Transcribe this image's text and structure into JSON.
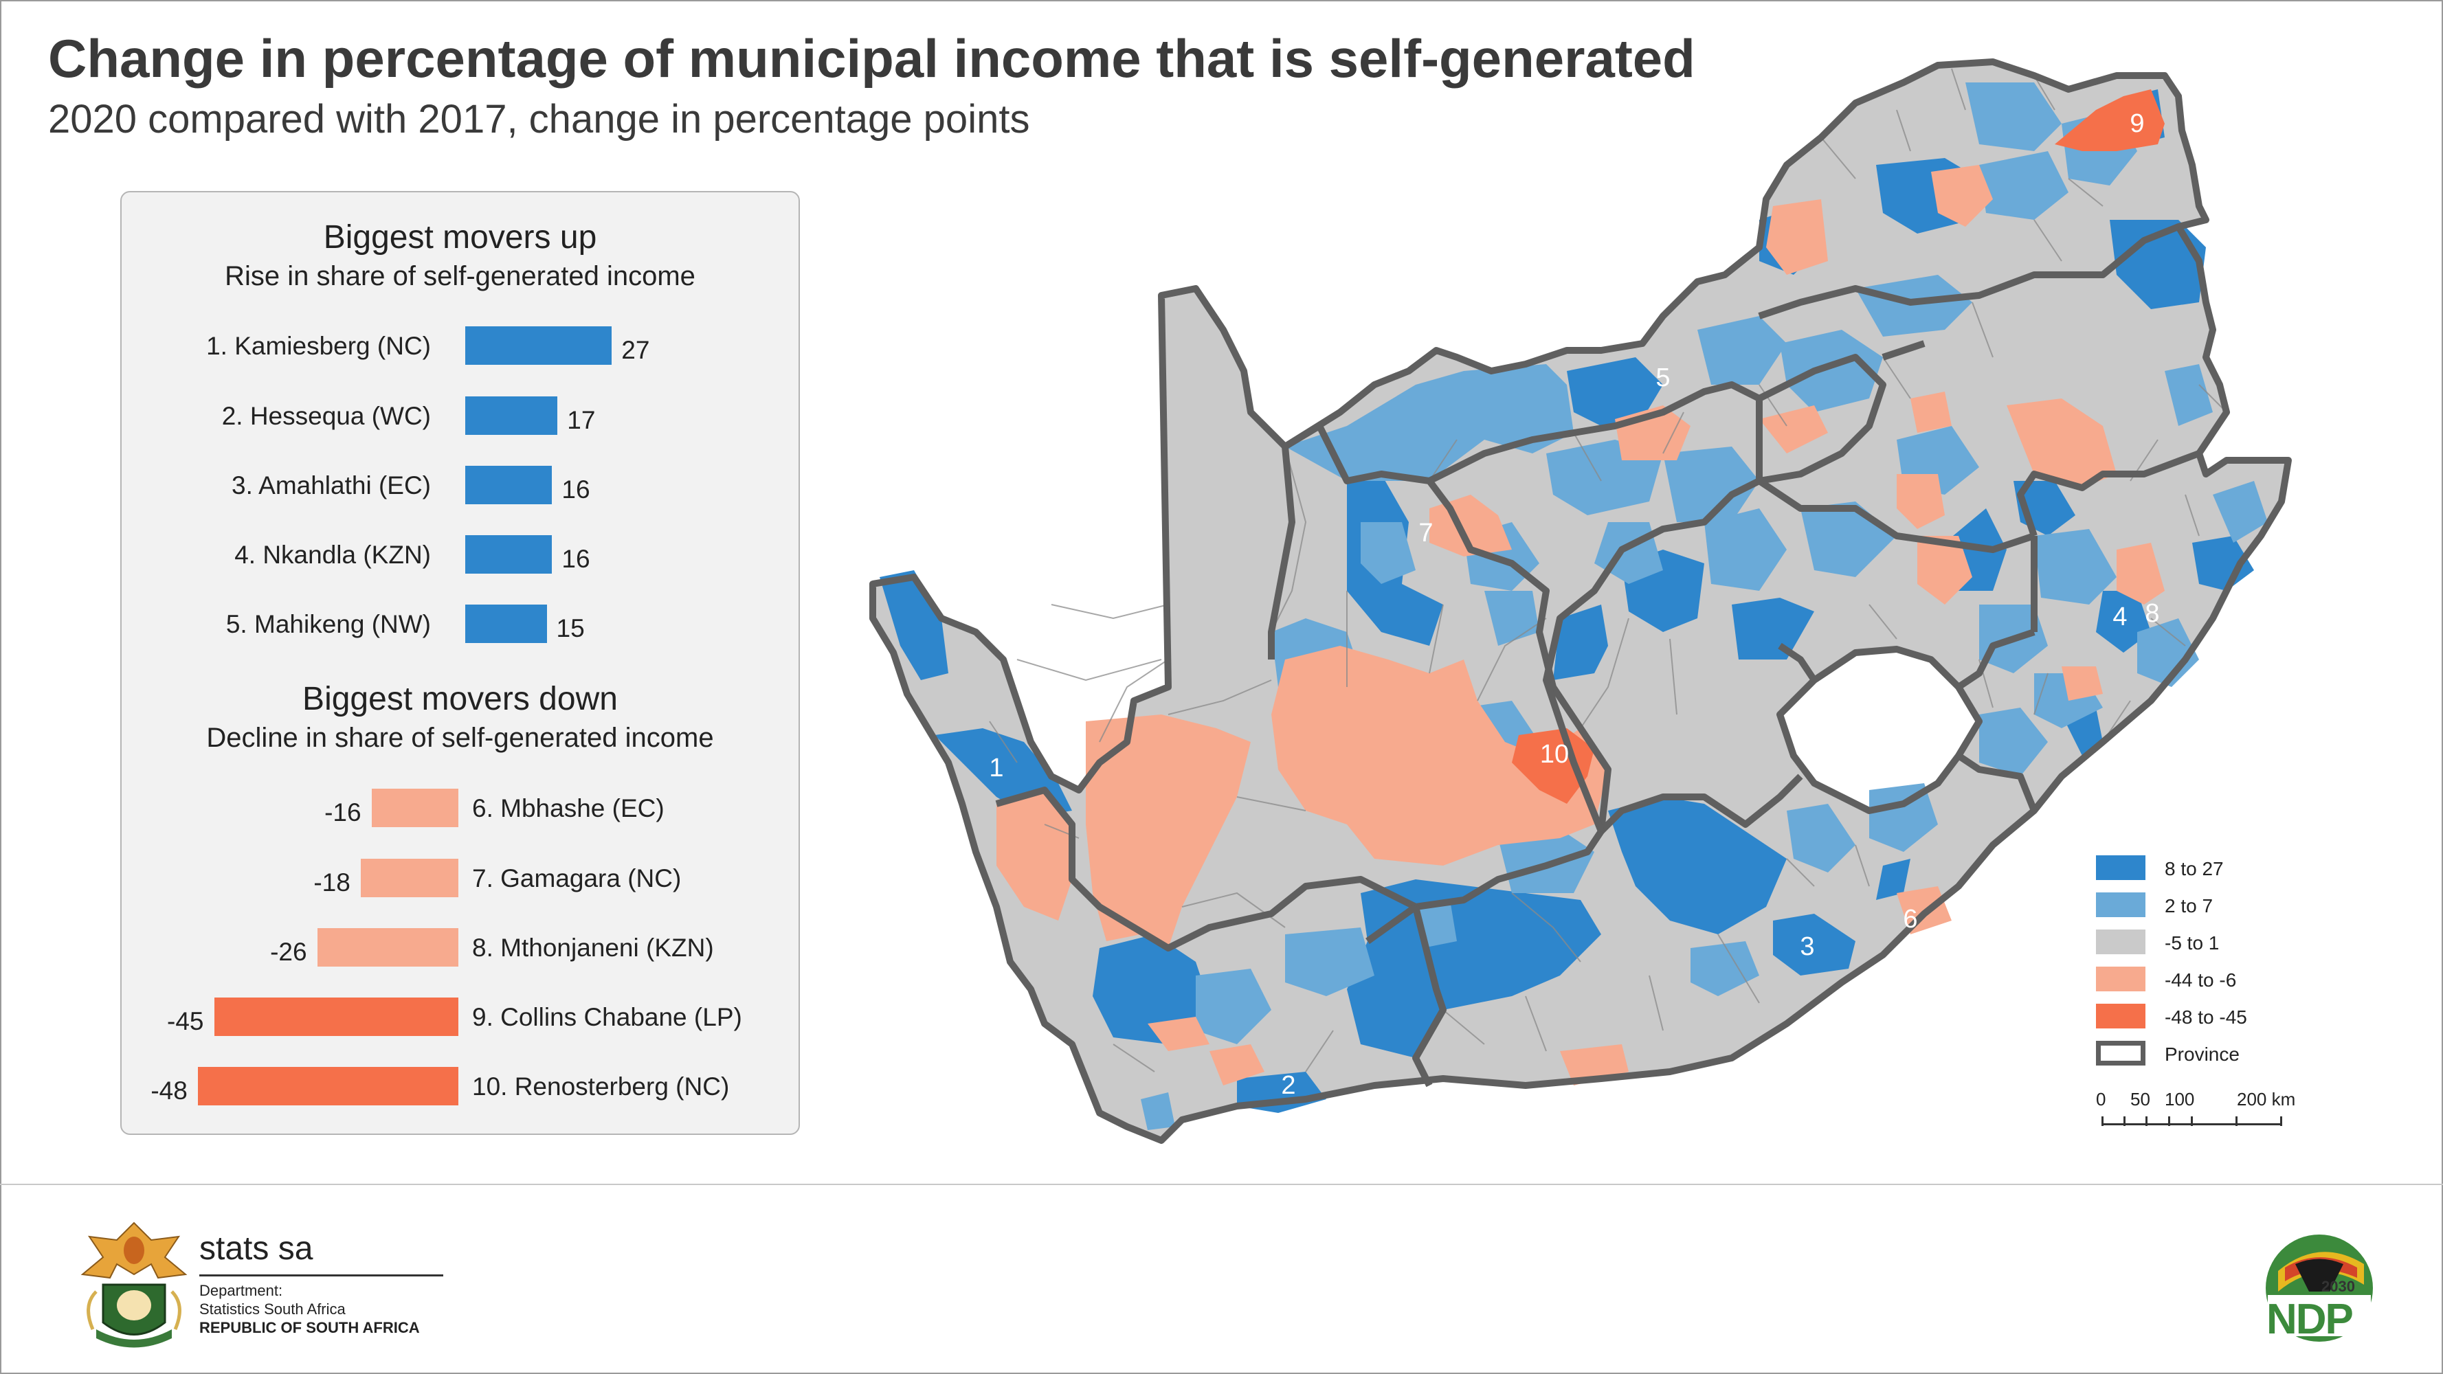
{
  "title": "Change in percentage of municipal income that is self-generated",
  "subtitle": "2020 compared with 2017, change in percentage points",
  "colors": {
    "cat_8_27": "#2e86cc",
    "cat_2_7": "#6aaad8",
    "cat_m5_1": "#cacaca",
    "cat_m44_m6": "#f7aa8e",
    "cat_m48_m45": "#f5704a",
    "province_border": "#5f5f5f"
  },
  "panel": {
    "up_title": "Biggest movers up",
    "up_subtitle": "Rise in share of self-generated income",
    "down_title": "Biggest movers down",
    "down_subtitle": "Decline in share of self-generated income",
    "up_items": [
      {
        "label": "1. Kamiesberg (NC)",
        "value": 27
      },
      {
        "label": "2. Hessequa (WC)",
        "value": 17
      },
      {
        "label": "3. Amahlathi (EC)",
        "value": 16
      },
      {
        "label": "4. Nkandla (KZN)",
        "value": 16
      },
      {
        "label": "5. Mahikeng (NW)",
        "value": 15
      }
    ],
    "down_items": [
      {
        "label": "6. Mbhashe (EC)",
        "value": -16
      },
      {
        "label": "7. Gamagara (NC)",
        "value": -18
      },
      {
        "label": "8. Mthonjaneni (KZN)",
        "value": -26
      },
      {
        "label": "9. Collins Chabane (LP)",
        "value": -45
      },
      {
        "label": "10. Renosterberg (NC)",
        "value": -48
      }
    ]
  },
  "map": {
    "markers": [
      "1",
      "2",
      "3",
      "4",
      "5",
      "6",
      "7",
      "8",
      "9",
      "10"
    ]
  },
  "legend": {
    "items": [
      {
        "label": "8 to 27",
        "color": "#2e86cc"
      },
      {
        "label": "2 to 7",
        "color": "#6aaad8"
      },
      {
        "label": "-5 to 1",
        "color": "#cacaca"
      },
      {
        "label": "-44 to -6",
        "color": "#f7aa8e"
      },
      {
        "label": "-48 to -45",
        "color": "#f5704a"
      },
      {
        "label": "Province",
        "color": "#ffffff"
      }
    ],
    "scale_labels": [
      "0",
      "50",
      "100",
      "200 km"
    ]
  },
  "footer": {
    "org_name": "stats sa",
    "dept_line1": "Department:",
    "dept_line2": "Statistics South Africa",
    "country": "REPUBLIC OF SOUTH AFRICA",
    "ndp_text": "NDP",
    "ndp_year": "2030"
  }
}
